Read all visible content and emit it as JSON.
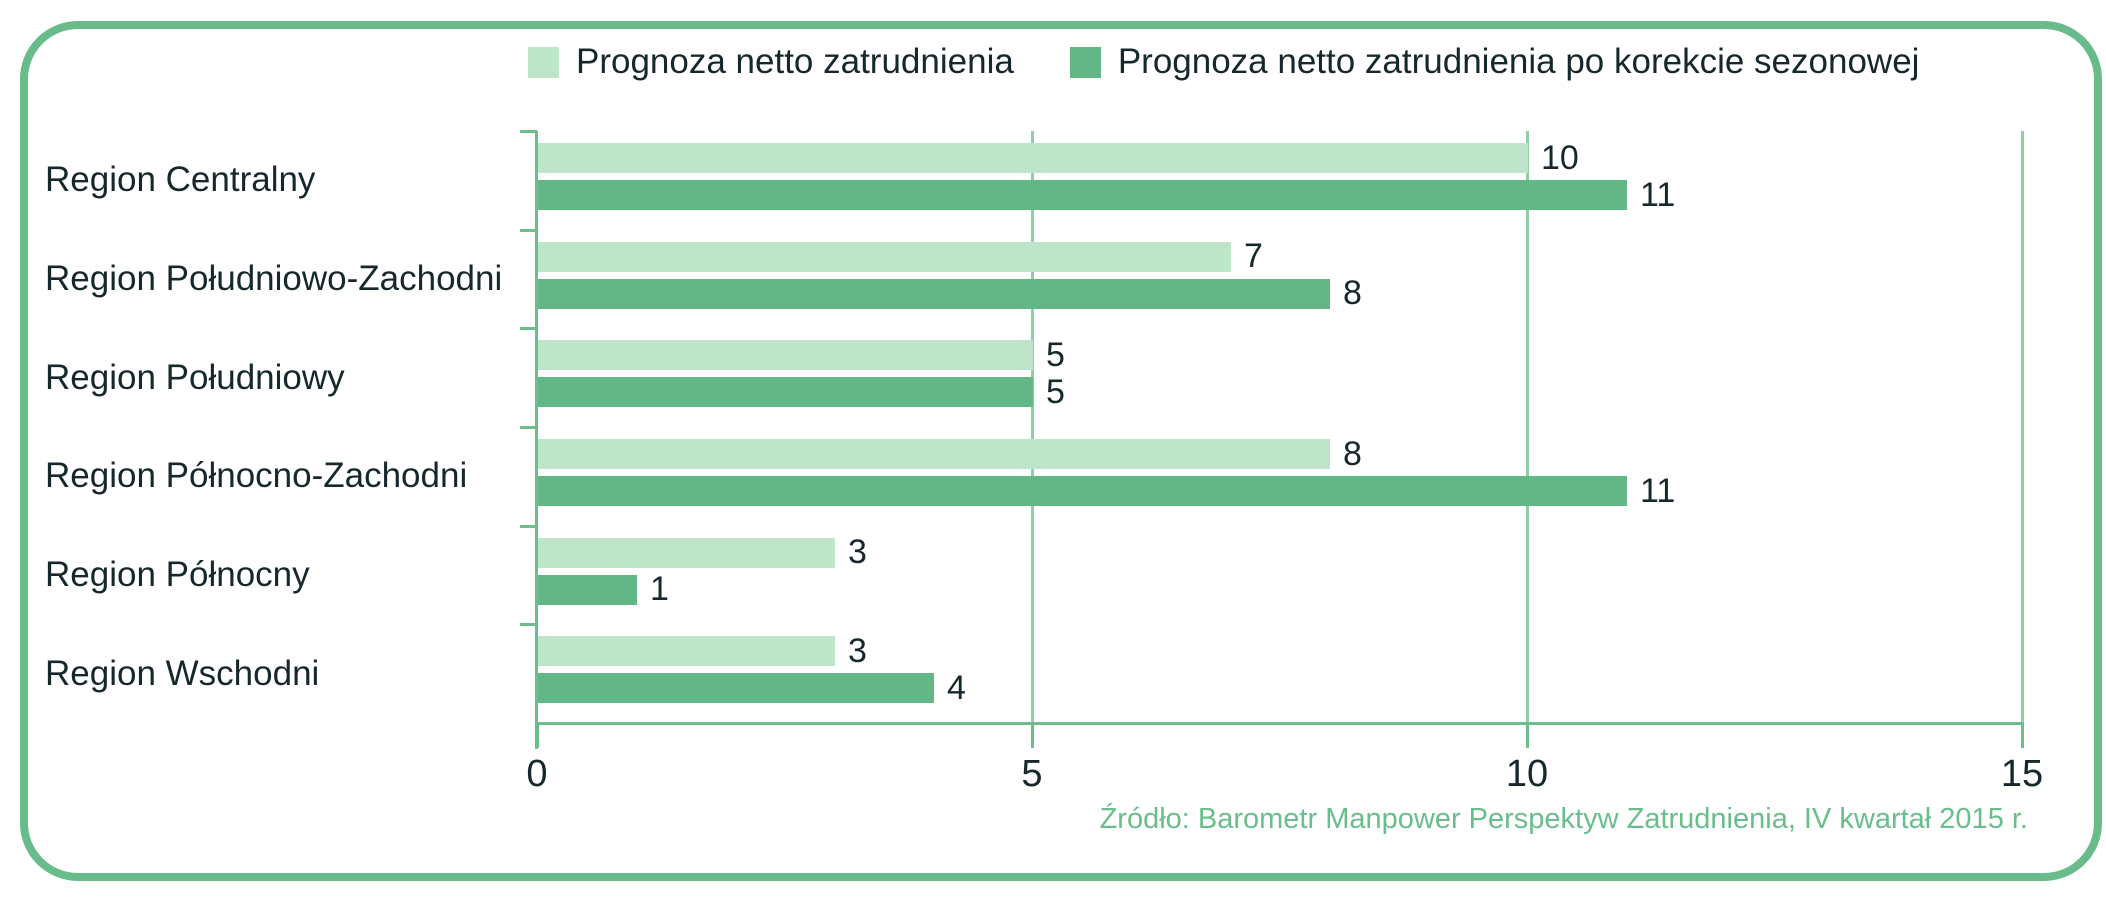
{
  "legend": {
    "items": [
      {
        "label": "Prognoza netto zatrudnienia",
        "color": "#bee5ca"
      },
      {
        "label": "Prognoza netto zatrudnienia po korekcie sezonowej",
        "color": "#63b685"
      }
    ]
  },
  "source": "Źródło: Barometr Manpower Perspektyw Zatrudnienia, IV kwartał 2015 r.",
  "colors": {
    "frame_border": "#68bb8a",
    "bar_light": "#bee5ca",
    "bar_dark": "#63b685",
    "gridline": "#8fcfa5",
    "axis": "#6cbd8c",
    "text": "#16282b",
    "source_text": "#6abd8c"
  },
  "chart_data": {
    "type": "bar",
    "orientation": "horizontal",
    "title": "",
    "xlabel": "",
    "ylabel": "",
    "categories": [
      "Region Centralny",
      "Region Południowo-Zachodni",
      "Region Południowy",
      "Region Północno-Zachodni",
      "Region Północny",
      "Region Wschodni"
    ],
    "series": [
      {
        "name": "Prognoza netto zatrudnienia",
        "color": "#bee5ca",
        "values": [
          10,
          7,
          5,
          8,
          3,
          3
        ]
      },
      {
        "name": "Prognoza netto zatrudnienia po korekcie sezonowej",
        "color": "#63b685",
        "values": [
          11,
          8,
          5,
          11,
          1,
          4
        ]
      }
    ],
    "xlim": [
      0,
      15
    ],
    "x_ticks": [
      0,
      5,
      10,
      15
    ],
    "grid": true,
    "legend_position": "top",
    "data_labels": true
  }
}
